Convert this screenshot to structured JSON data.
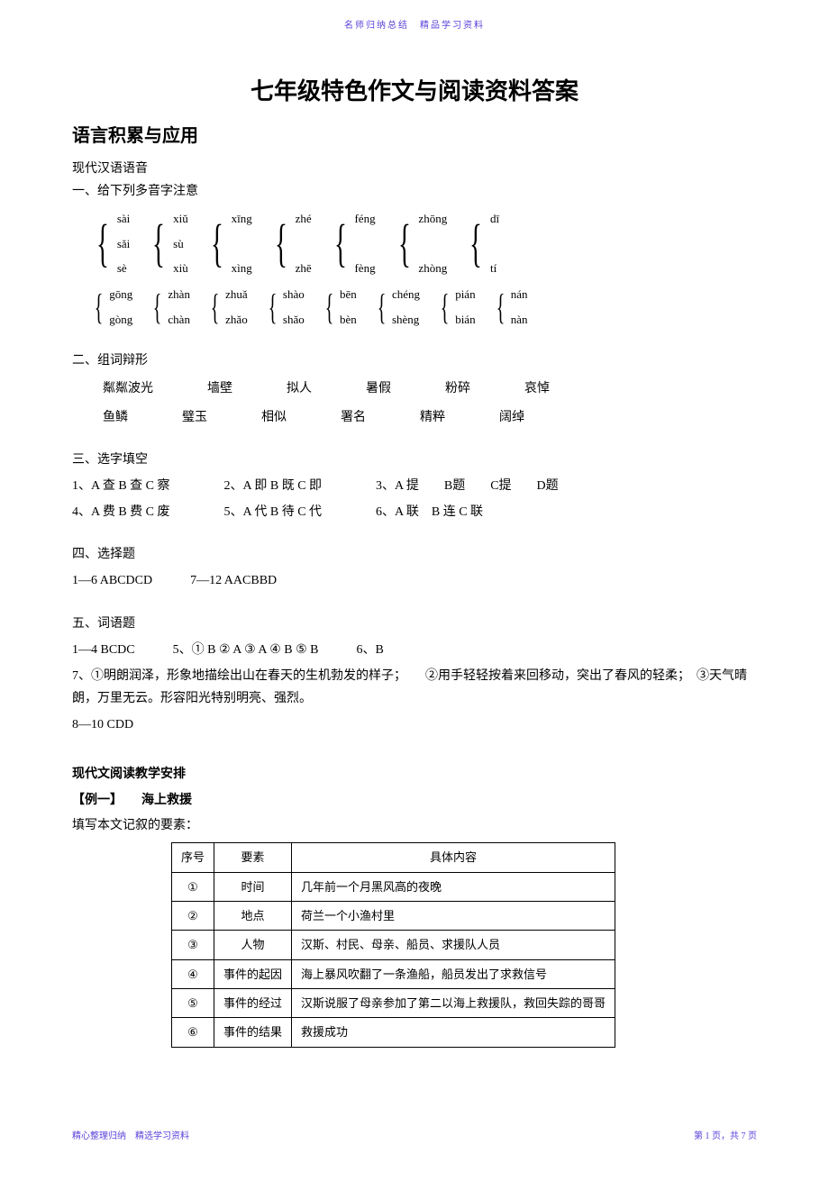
{
  "header_small": "名师归纳总结　精品学习资料",
  "title": "七年级特色作文与阅读资料答案",
  "section1": "语言积累与应用",
  "phon_heading": "现代汉语语音",
  "phon_q1": "一、给下列多音字注意",
  "brace_rows": [
    [
      [
        "sài",
        "sǎi",
        "sè"
      ],
      [
        "xiǔ",
        "sù",
        "xiù"
      ],
      [
        "xīng",
        "",
        "xìng"
      ],
      [
        "zhé",
        "",
        "zhē"
      ],
      [
        "féng",
        "",
        "fèng"
      ],
      [
        "zhōng",
        "",
        "zhòng"
      ],
      [
        "dī",
        "",
        "tí"
      ]
    ],
    [
      [
        "gōng",
        "gòng"
      ],
      [
        "zhàn",
        "chàn"
      ],
      [
        "zhuǎ",
        "zhǎo"
      ],
      [
        "shào",
        "shǎo"
      ],
      [
        "bēn",
        "bèn"
      ],
      [
        "chéng",
        "shèng"
      ],
      [
        "pián",
        "bián"
      ],
      [
        "nán",
        "nàn"
      ]
    ]
  ],
  "q2_head": "二、组词辩形",
  "q2_rows": [
    [
      "粼粼波光",
      "墙壁",
      "拟人",
      "暑假",
      "粉碎",
      "哀悼"
    ],
    [
      "鱼鳞",
      "璧玉",
      "相似",
      "署名",
      "精粹",
      "阔绰"
    ]
  ],
  "q3_head": "三、选字填空",
  "q3_items": [
    "1、A 查 B 查 C 察",
    "2、A 即 B 既 C 即",
    "3、A 提　　B题　　C提　　D题",
    "4、A 费 B 费 C 废",
    "5、A 代 B 待 C 代",
    "6、A 联　B 连 C 联"
  ],
  "q4_head": "四、选择题",
  "q4_lines": [
    "1—6 ABCDCD　　　7—12 AACBBD"
  ],
  "q5_head": "五、词语题",
  "q5_l1": "1—4 BCDC　　　5、① B ② A ③ A ④ B ⑤ B　　　6、B",
  "q5_l2": "7、①明朗润泽，形象地描绘出山在春天的生机勃发的样子；　　②用手轻轻按着来回移动，突出了春风的轻柔；　③天气晴朗，万里无云。形容阳光特别明亮、强烈。",
  "q5_l3": "8—10 CDD",
  "sec2_head": "现代文阅读教学安排",
  "ex1_label": "【例一】　　海上救援",
  "ex1_intro": "填写本文记叙的要素：",
  "table": {
    "headers": [
      "序号",
      "要素",
      "具体内容"
    ],
    "rows": [
      [
        "①",
        "时间",
        "几年前一个月黑风高的夜晚"
      ],
      [
        "②",
        "地点",
        "荷兰一个小渔村里"
      ],
      [
        "③",
        "人物",
        "汉斯、村民、母亲、船员、求援队人员"
      ],
      [
        "④",
        "事件的起因",
        "海上暴风吹翻了一条渔船，船员发出了求救信号"
      ],
      [
        "⑤",
        "事件的经过",
        "汉斯说服了母亲参加了第二以海上救援队，救回失踪的哥哥"
      ],
      [
        "⑥",
        "事件的结果",
        "救援成功"
      ]
    ]
  },
  "footer_left": "精心整理归纳　精选学习资料",
  "footer_right": "第 1 页，共 7 页"
}
